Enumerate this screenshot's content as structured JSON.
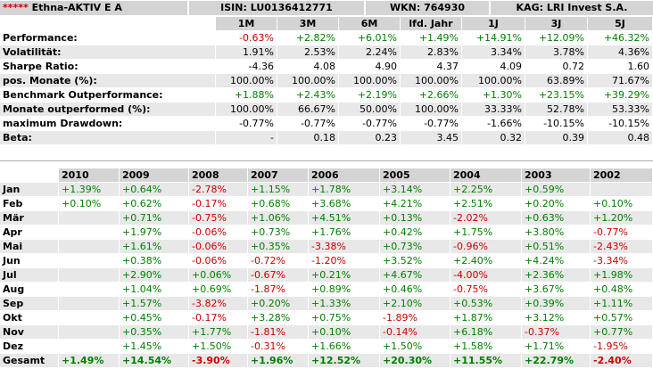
{
  "header": {
    "stars": "*****",
    "fund_name": "Ethna-AKTIV E A",
    "isin": "ISIN: LU0136412771",
    "wkn": "WKN: 764930",
    "kag": "KAG: LRI Invest S.A."
  },
  "colors": {
    "positive": "#008000",
    "negative": "#cc0000",
    "header_bg": "#d4d4d4",
    "row_alt_bg": "#e8e8e8"
  },
  "performance": {
    "columns": [
      "1M",
      "3M",
      "6M",
      "lfd. Jahr",
      "1J",
      "3J",
      "5J"
    ],
    "rows": [
      {
        "label": "Performance:",
        "values": [
          "-0.63%",
          "+2.82%",
          "+6.01%",
          "+1.49%",
          "+14.91%",
          "+12.09%",
          "+46.32%"
        ],
        "colored": true
      },
      {
        "label": "Volatilität:",
        "values": [
          "1.91%",
          "2.53%",
          "2.24%",
          "2.83%",
          "3.34%",
          "3.78%",
          "4.36%"
        ],
        "colored": false
      },
      {
        "label": "Sharpe Ratio:",
        "values": [
          "-4.36",
          "4.08",
          "4.90",
          "4.37",
          "4.09",
          "0.72",
          "1.60"
        ],
        "colored": false
      },
      {
        "label": "pos. Monate (%):",
        "values": [
          "100.00%",
          "100.00%",
          "100.00%",
          "100.00%",
          "100.00%",
          "63.89%",
          "71.67%"
        ],
        "colored": false
      },
      {
        "label": "Benchmark Outperformance:",
        "values": [
          "+1.88%",
          "+2.43%",
          "+2.19%",
          "+2.66%",
          "+1.30%",
          "+23.15%",
          "+39.29%"
        ],
        "colored": true
      },
      {
        "label": "Monate outperformed (%):",
        "values": [
          "100.00%",
          "66.67%",
          "50.00%",
          "100.00%",
          "33.33%",
          "52.78%",
          "53.33%"
        ],
        "colored": false
      },
      {
        "label": "maximum Drawdown:",
        "values": [
          "-0.77%",
          "-0.77%",
          "-0.77%",
          "-0.77%",
          "-1.66%",
          "-10.15%",
          "-10.15%"
        ],
        "colored": false
      },
      {
        "label": "Beta:",
        "values": [
          "-",
          "0.18",
          "0.23",
          "3.45",
          "0.32",
          "0.39",
          "0.48"
        ],
        "colored": false
      }
    ]
  },
  "monthly": {
    "years": [
      "2010",
      "2009",
      "2008",
      "2007",
      "2006",
      "2005",
      "2004",
      "2003",
      "2002"
    ],
    "rows": [
      {
        "label": "Jan",
        "values": [
          "+1.39%",
          "+0.64%",
          "-2.78%",
          "+1.15%",
          "+1.78%",
          "+3.14%",
          "+2.25%",
          "+0.59%",
          ""
        ]
      },
      {
        "label": "Feb",
        "values": [
          "+0.10%",
          "+0.62%",
          "-0.17%",
          "+0.68%",
          "+3.68%",
          "+4.21%",
          "+2.51%",
          "+0.20%",
          "+0.10%"
        ]
      },
      {
        "label": "Mär",
        "values": [
          "",
          "+0.71%",
          "-0.75%",
          "+1.06%",
          "+4.51%",
          "+0.13%",
          "-2.02%",
          "+0.63%",
          "+1.20%"
        ]
      },
      {
        "label": "Apr",
        "values": [
          "",
          "+1.97%",
          "-0.06%",
          "+0.73%",
          "+1.76%",
          "+0.42%",
          "+1.75%",
          "+3.80%",
          "-0.77%"
        ]
      },
      {
        "label": "Mai",
        "values": [
          "",
          "+1.61%",
          "-0.06%",
          "+0.35%",
          "-3.38%",
          "+0.73%",
          "-0.96%",
          "+0.51%",
          "-2.43%"
        ]
      },
      {
        "label": "Jun",
        "values": [
          "",
          "+0.38%",
          "-0.06%",
          "-0.72%",
          "-1.20%",
          "+3.52%",
          "+2.40%",
          "+4.24%",
          "-3.34%"
        ]
      },
      {
        "label": "Jul",
        "values": [
          "",
          "+2.90%",
          "+0.06%",
          "-0.67%",
          "+0.21%",
          "+4.67%",
          "-4.00%",
          "+2.36%",
          "+1.98%"
        ]
      },
      {
        "label": "Aug",
        "values": [
          "",
          "+1.04%",
          "+0.69%",
          "-1.87%",
          "+0.89%",
          "+0.46%",
          "-0.75%",
          "+3.67%",
          "+0.48%"
        ]
      },
      {
        "label": "Sep",
        "values": [
          "",
          "+1.57%",
          "-3.82%",
          "+0.20%",
          "+1.33%",
          "+2.10%",
          "+0.53%",
          "+0.39%",
          "+1.11%"
        ]
      },
      {
        "label": "Okt",
        "values": [
          "",
          "+0.45%",
          "-0.17%",
          "+3.28%",
          "+0.75%",
          "-1.89%",
          "+1.87%",
          "+3.12%",
          "+0.57%"
        ]
      },
      {
        "label": "Nov",
        "values": [
          "",
          "+0.35%",
          "+1.77%",
          "-1.81%",
          "+0.10%",
          "-0.14%",
          "+6.18%",
          "-0.37%",
          "+0.77%"
        ]
      },
      {
        "label": "Dez",
        "values": [
          "",
          "+1.45%",
          "+1.50%",
          "-0.31%",
          "+1.66%",
          "+1.50%",
          "+1.58%",
          "+1.71%",
          "-1.95%"
        ]
      }
    ],
    "total": {
      "label": "Gesamt",
      "values": [
        "+1.49%",
        "+14.54%",
        "-3.90%",
        "+1.96%",
        "+12.52%",
        "+20.30%",
        "+11.55%",
        "+22.79%",
        "-2.40%"
      ]
    }
  }
}
